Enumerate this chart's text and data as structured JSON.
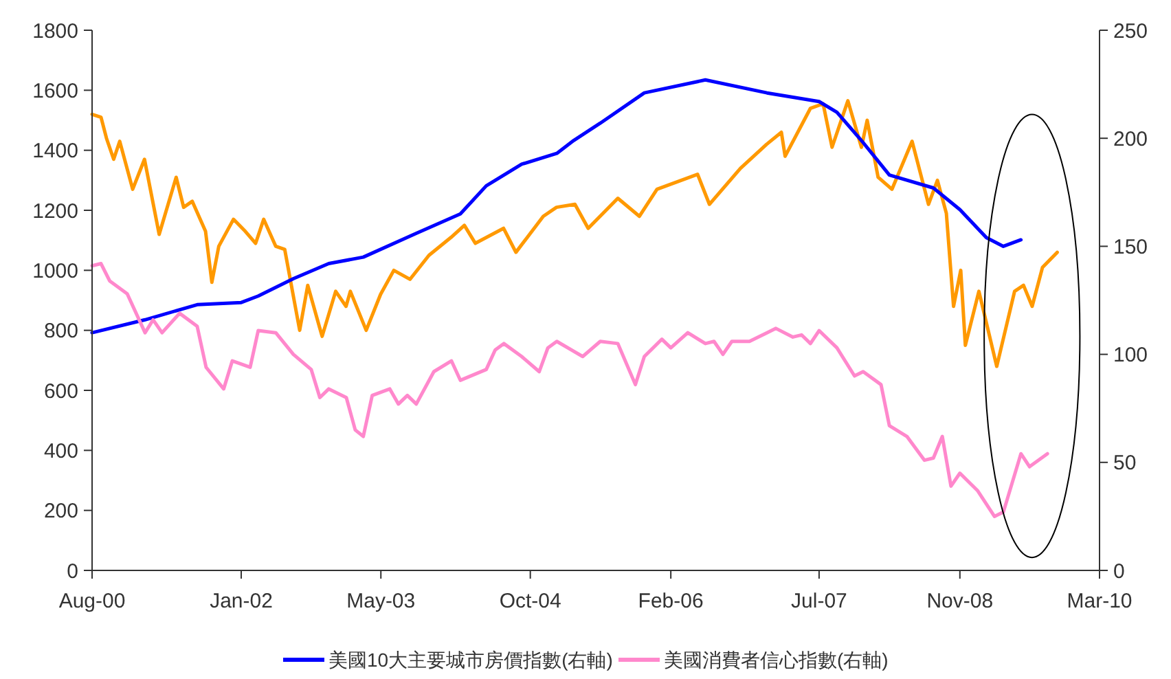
{
  "chart_data": {
    "type": "line",
    "xlim": [
      "2000-08-01",
      "2010-03-01"
    ],
    "xticks": [
      {
        "value": "2000-08-01",
        "label": "Aug-00"
      },
      {
        "value": "2002-01-01",
        "label": "Jan-02"
      },
      {
        "value": "2003-05-01",
        "label": "May-03"
      },
      {
        "value": "2004-10-01",
        "label": "Oct-04"
      },
      {
        "value": "2006-02-01",
        "label": "Feb-06"
      },
      {
        "value": "2007-07-01",
        "label": "Jul-07"
      },
      {
        "value": "2008-11-01",
        "label": "Nov-08"
      },
      {
        "value": "2010-03-01",
        "label": "Mar-10"
      }
    ],
    "ylim": [
      0,
      1800
    ],
    "yticks": [
      0,
      200,
      400,
      600,
      800,
      1000,
      1200,
      1400,
      1600,
      1800
    ],
    "y2lim": [
      0,
      250
    ],
    "y2ticks": [
      0,
      50,
      100,
      150,
      200,
      250
    ],
    "grid": false,
    "legend": "bottom",
    "marker": "none",
    "line_style": "solid",
    "series": [
      {
        "color": "#ff9900",
        "x": [
          "2000-08-01",
          "2000-09-01",
          "2000-09-20",
          "2000-10-15",
          "2000-11-05",
          "2000-12-20",
          "2001-01-30",
          "2001-03-22",
          "2001-05-20",
          "2001-06-15",
          "2001-07-15",
          "2001-08-30",
          "2001-09-21",
          "2001-10-15",
          "2001-12-05",
          "2002-01-15",
          "2002-02-20",
          "2002-03-20",
          "2002-05-01",
          "2002-06-01",
          "2002-07-23",
          "2002-08-20",
          "2002-09-30",
          "2002-10-09",
          "2002-11-25",
          "2002-12-31",
          "2003-01-15",
          "2003-03-11",
          "2003-04-30",
          "2003-06-15",
          "2003-08-10",
          "2003-10-15",
          "2003-12-31",
          "2004-02-15",
          "2004-03-24",
          "2004-06-30",
          "2004-08-12",
          "2004-11-15",
          "2004-12-31",
          "2005-03-05",
          "2005-04-20",
          "2005-08-01",
          "2005-10-15",
          "2005-12-15",
          "2006-05-05",
          "2006-06-15",
          "2006-10-01",
          "2006-12-31",
          "2007-02-20",
          "2007-03-05",
          "2007-06-01",
          "2007-07-15",
          "2007-08-15",
          "2007-10-09",
          "2007-11-25",
          "2007-12-15",
          "2008-01-22",
          "2008-03-10",
          "2008-05-19",
          "2008-07-15",
          "2008-08-15",
          "2008-09-15",
          "2008-10-10",
          "2008-11-04",
          "2008-11-20",
          "2009-01-06",
          "2009-03-09",
          "2009-05-10",
          "2009-06-10",
          "2009-07-10",
          "2009-08-15",
          "2009-10-05"
        ],
        "values": [
          1520,
          1510,
          1440,
          1370,
          1430,
          1270,
          1370,
          1120,
          1310,
          1210,
          1230,
          1130,
          960,
          1080,
          1170,
          1130,
          1090,
          1170,
          1080,
          1070,
          800,
          950,
          810,
          780,
          930,
          880,
          930,
          800,
          920,
          1000,
          970,
          1050,
          1110,
          1150,
          1090,
          1140,
          1060,
          1180,
          1210,
          1220,
          1140,
          1240,
          1180,
          1270,
          1320,
          1220,
          1340,
          1420,
          1460,
          1380,
          1540,
          1555,
          1410,
          1565,
          1410,
          1500,
          1310,
          1270,
          1430,
          1220,
          1300,
          1190,
          880,
          1000,
          750,
          930,
          680,
          930,
          950,
          880,
          1010,
          1060
        ]
      },
      {
        "name": "美國10大主要城市房價指數(右軸)",
        "color": "#0000ff",
        "axis": "y2",
        "x": [
          "2000-08-01",
          "2001-02-01",
          "2001-08-01",
          "2002-01-01",
          "2002-03-01",
          "2002-07-01",
          "2002-11-01",
          "2003-03-01",
          "2003-09-01",
          "2004-02-01",
          "2004-05-01",
          "2004-09-01",
          "2005-01-01",
          "2005-03-01",
          "2005-06-01",
          "2005-11-01",
          "2006-06-01",
          "2007-01-01",
          "2007-07-01",
          "2007-09-01",
          "2007-12-01",
          "2008-03-01",
          "2008-08-01",
          "2008-11-01",
          "2009-02-01",
          "2009-04-01",
          "2009-06-01"
        ],
        "values": [
          110,
          116,
          123,
          124,
          127,
          135,
          142,
          145,
          156,
          165,
          178,
          188,
          193,
          199,
          207,
          221,
          227,
          221,
          217,
          212,
          198,
          183,
          177,
          167,
          154,
          150,
          153
        ]
      },
      {
        "name": "美國消費者信心指數(右軸)",
        "color": "#ff88cc",
        "axis": "y2",
        "x": [
          "2000-08-01",
          "2000-09-01",
          "2000-10-01",
          "2000-12-01",
          "2001-02-01",
          "2001-03-01",
          "2001-04-01",
          "2001-06-01",
          "2001-08-01",
          "2001-09-01",
          "2001-11-01",
          "2001-12-01",
          "2002-02-01",
          "2002-03-01",
          "2002-05-01",
          "2002-07-01",
          "2002-09-01",
          "2002-10-01",
          "2002-11-01",
          "2003-01-01",
          "2003-02-01",
          "2003-03-01",
          "2003-04-01",
          "2003-06-01",
          "2003-07-01",
          "2003-08-01",
          "2003-09-01",
          "2003-11-01",
          "2004-01-01",
          "2004-02-01",
          "2004-05-01",
          "2004-06-01",
          "2004-07-01",
          "2004-09-01",
          "2004-11-01",
          "2004-12-01",
          "2005-01-01",
          "2005-04-01",
          "2005-06-01",
          "2005-08-01",
          "2005-10-01",
          "2005-11-01",
          "2006-01-01",
          "2006-02-01",
          "2006-04-01",
          "2006-06-01",
          "2006-07-01",
          "2006-08-01",
          "2006-09-01",
          "2006-11-01",
          "2007-01-01",
          "2007-02-01",
          "2007-04-01",
          "2007-05-01",
          "2007-06-01",
          "2007-07-01",
          "2007-09-01",
          "2007-11-01",
          "2007-12-01",
          "2008-02-01",
          "2008-03-01",
          "2008-05-01",
          "2008-07-01",
          "2008-08-01",
          "2008-09-01",
          "2008-10-01",
          "2008-11-01",
          "2009-01-01",
          "2009-03-01",
          "2009-04-01",
          "2009-06-01",
          "2009-07-01",
          "2009-09-01"
        ],
        "values": [
          141,
          142,
          134,
          128,
          110,
          116,
          110,
          119,
          113,
          94,
          84,
          97,
          94,
          111,
          110,
          100,
          93,
          80,
          84,
          80,
          65,
          62,
          81,
          84,
          77,
          81,
          77,
          92,
          97,
          88,
          93,
          102,
          105,
          99,
          92,
          103,
          106,
          99,
          106,
          105,
          86,
          99,
          107,
          103,
          110,
          105,
          106,
          100,
          106,
          106,
          110,
          112,
          108,
          109,
          105,
          111,
          103,
          90,
          92,
          86,
          67,
          62,
          51,
          52,
          62,
          39,
          45,
          37,
          25,
          27,
          54,
          48,
          54
        ]
      }
    ]
  }
}
